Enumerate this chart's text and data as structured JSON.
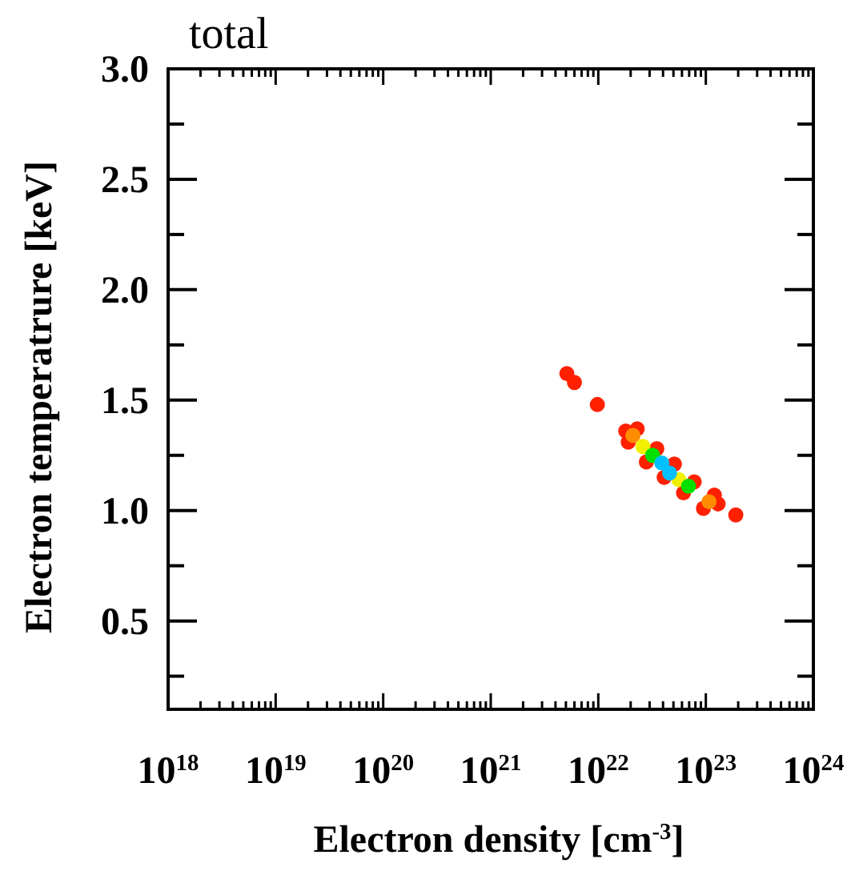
{
  "chart_data": {
    "type": "scatter",
    "title": "total",
    "xlabel": "Electron density [cm$^{-3}$]",
    "ylabel": "Electron temperatrure [keV]",
    "log": "x",
    "marker": "circle",
    "grid": false,
    "xlim": [
      1e+18,
      1e+24
    ],
    "ylim": [
      0.1,
      3.0
    ],
    "xticks": [
      {
        "value": 1e+18,
        "label": "10$^{18}$"
      },
      {
        "value": 2e+18,
        "label": null
      },
      {
        "value": 3e+18,
        "label": null
      },
      {
        "value": 4e+18,
        "label": null
      },
      {
        "value": 5e+18,
        "label": null
      },
      {
        "value": 6e+18,
        "label": null
      },
      {
        "value": 7e+18,
        "label": null
      },
      {
        "value": 8e+18,
        "label": null
      },
      {
        "value": 9e+18,
        "label": null
      },
      {
        "value": 1e+19,
        "label": "10$^{19}$"
      },
      {
        "value": 2e+19,
        "label": null
      },
      {
        "value": 3e+19,
        "label": null
      },
      {
        "value": 4e+19,
        "label": null
      },
      {
        "value": 5e+19,
        "label": null
      },
      {
        "value": 6e+19,
        "label": null
      },
      {
        "value": 7e+19,
        "label": null
      },
      {
        "value": 8e+19,
        "label": null
      },
      {
        "value": 9e+19,
        "label": null
      },
      {
        "value": 1e+20,
        "label": "10$^{20}$"
      },
      {
        "value": 2e+20,
        "label": null
      },
      {
        "value": 3e+20,
        "label": null
      },
      {
        "value": 4e+20,
        "label": null
      },
      {
        "value": 5e+20,
        "label": null
      },
      {
        "value": 6e+20,
        "label": null
      },
      {
        "value": 7e+20,
        "label": null
      },
      {
        "value": 8e+20,
        "label": null
      },
      {
        "value": 9e+20,
        "label": null
      },
      {
        "value": 1e+21,
        "label": "10$^{21}$"
      },
      {
        "value": 2e+21,
        "label": null
      },
      {
        "value": 3e+21,
        "label": null
      },
      {
        "value": 4e+21,
        "label": null
      },
      {
        "value": 5e+21,
        "label": null
      },
      {
        "value": 6e+21,
        "label": null
      },
      {
        "value": 7e+21,
        "label": null
      },
      {
        "value": 8e+21,
        "label": null
      },
      {
        "value": 9e+21,
        "label": null
      },
      {
        "value": 1e+22,
        "label": "10$^{22}$"
      },
      {
        "value": 2e+22,
        "label": null
      },
      {
        "value": 3e+22,
        "label": null
      },
      {
        "value": 4e+22,
        "label": null
      },
      {
        "value": 5e+22,
        "label": null
      },
      {
        "value": 6e+22,
        "label": null
      },
      {
        "value": 7e+22,
        "label": null
      },
      {
        "value": 8e+22,
        "label": null
      },
      {
        "value": 9e+22,
        "label": null
      },
      {
        "value": 1e+23,
        "label": "10$^{23}$"
      },
      {
        "value": 2e+23,
        "label": null
      },
      {
        "value": 3e+23,
        "label": null
      },
      {
        "value": 4e+23,
        "label": null
      },
      {
        "value": 5e+23,
        "label": null
      },
      {
        "value": 6e+23,
        "label": null
      },
      {
        "value": 7e+23,
        "label": null
      },
      {
        "value": 8e+23,
        "label": null
      },
      {
        "value": 9e+23,
        "label": null
      },
      {
        "value": 1e+24,
        "label": "10$^{24}$"
      }
    ],
    "yticks": [
      {
        "value": 0.25,
        "label": null
      },
      {
        "value": 0.5,
        "label": "0.5"
      },
      {
        "value": 0.75,
        "label": null
      },
      {
        "value": 1.0,
        "label": "1.0"
      },
      {
        "value": 1.25,
        "label": null
      },
      {
        "value": 1.5,
        "label": "1.5"
      },
      {
        "value": 1.75,
        "label": null
      },
      {
        "value": 2.0,
        "label": "2.0"
      },
      {
        "value": 2.25,
        "label": null
      },
      {
        "value": 2.5,
        "label": "2.5"
      },
      {
        "value": 2.75,
        "label": null
      },
      {
        "value": 3.0,
        "label": "3.0"
      }
    ],
    "series": [
      {
        "color": "#ff2000",
        "x": [
          2.3e+22,
          1.9e+22,
          3.5e+22,
          2.8e+22,
          5.1e+22,
          4.1e+22,
          7.8e+22,
          6.2e+22,
          1.2e+23,
          9.5e+22,
          1.8e+22,
          1.3e+23,
          9.8e+21,
          1.9e+23,
          6e+21,
          5.1e+21
        ],
        "values": [
          1.37,
          1.31,
          1.28,
          1.22,
          1.21,
          1.15,
          1.13,
          1.08,
          1.07,
          1.01,
          1.36,
          1.03,
          1.48,
          0.98,
          1.58,
          1.62
        ]
      },
      {
        "color": "#ff8c00",
        "x": [
          2.1e+22,
          1.07e+23
        ],
        "values": [
          1.34,
          1.04
        ]
      },
      {
        "color": "#f0f000",
        "x": [
          2.6e+22,
          5.6e+22
        ],
        "values": [
          1.29,
          1.14
        ]
      },
      {
        "color": "#00e000",
        "x": [
          3.2e+22,
          6.9e+22
        ],
        "values": [
          1.25,
          1.11
        ]
      },
      {
        "color": "#00c0ff",
        "x": [
          3.9e+22,
          4.6e+22
        ],
        "values": [
          1.215,
          1.17
        ]
      }
    ]
  }
}
